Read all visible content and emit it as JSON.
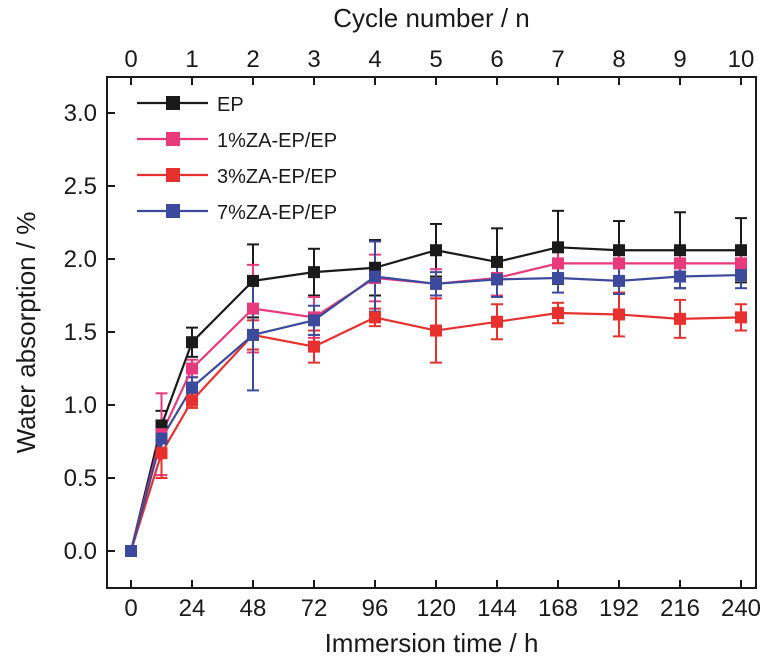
{
  "chart_data": {
    "type": "line",
    "title": "",
    "xlabel": "Immersion time / h",
    "x2label": "Cycle number / n",
    "ylabel": "Water absorption / %",
    "xlim": [
      -12,
      252
    ],
    "ylim": [
      -0.25,
      3.25
    ],
    "x_ticks": [
      0,
      24,
      48,
      72,
      96,
      120,
      144,
      168,
      192,
      216,
      240
    ],
    "x_tick_labels": [
      "0",
      "24",
      "48",
      "72",
      "96",
      "120",
      "144",
      "168",
      "192",
      "216",
      "240"
    ],
    "x2_ticks": [
      0,
      24,
      48,
      72,
      96,
      120,
      144,
      168,
      192,
      216,
      240
    ],
    "x2_tick_labels": [
      "0",
      "1",
      "2",
      "3",
      "4",
      "5",
      "6",
      "7",
      "8",
      "9",
      "10"
    ],
    "y_ticks": [
      0.0,
      0.5,
      1.0,
      1.5,
      2.0,
      2.5,
      3.0
    ],
    "y_tick_labels": [
      "0.0",
      "0.5",
      "1.0",
      "1.5",
      "2.0",
      "2.5",
      "3.0"
    ],
    "grid": false,
    "legend_position": "top-left",
    "x": [
      0,
      12,
      24,
      48,
      72,
      96,
      120,
      144,
      168,
      192,
      216,
      240
    ],
    "series": [
      {
        "name": "EP",
        "color": "#1a1a1a",
        "values": [
          0,
          0.86,
          1.43,
          1.85,
          1.91,
          1.94,
          2.06,
          1.98,
          2.08,
          2.06,
          2.06,
          2.06
        ],
        "errors": [
          0,
          0.1,
          0.1,
          0.25,
          0.16,
          0.19,
          0.18,
          0.23,
          0.25,
          0.2,
          0.26,
          0.22
        ]
      },
      {
        "name": "1%ZA-EP/EP",
        "color": "#e8397d",
        "values": [
          0,
          0.8,
          1.25,
          1.66,
          1.6,
          1.87,
          1.83,
          1.87,
          1.97,
          1.97,
          1.97,
          1.97
        ],
        "errors": [
          0,
          0.28,
          0.06,
          0.3,
          0.14,
          0.16,
          0.1,
          0.12,
          0.1,
          0.1,
          0.1,
          0.1
        ]
      },
      {
        "name": "3%ZA-EP/EP",
        "color": "#e8312e",
        "values": [
          0,
          0.67,
          1.03,
          1.48,
          1.4,
          1.6,
          1.51,
          1.57,
          1.63,
          1.62,
          1.59,
          1.6
        ],
        "errors": [
          0,
          0.17,
          0.05,
          0.1,
          0.11,
          0.06,
          0.22,
          0.12,
          0.07,
          0.15,
          0.13,
          0.09
        ]
      },
      {
        "name": "7%ZA-EP/EP",
        "color": "#3b4a9c",
        "values": [
          0,
          0.77,
          1.12,
          1.48,
          1.58,
          1.88,
          1.83,
          1.86,
          1.87,
          1.85,
          1.88,
          1.89
        ],
        "errors": [
          0,
          0.08,
          0.07,
          0.38,
          0.1,
          0.24,
          0.08,
          0.12,
          0.1,
          0.09,
          0.08,
          0.09
        ]
      }
    ]
  }
}
